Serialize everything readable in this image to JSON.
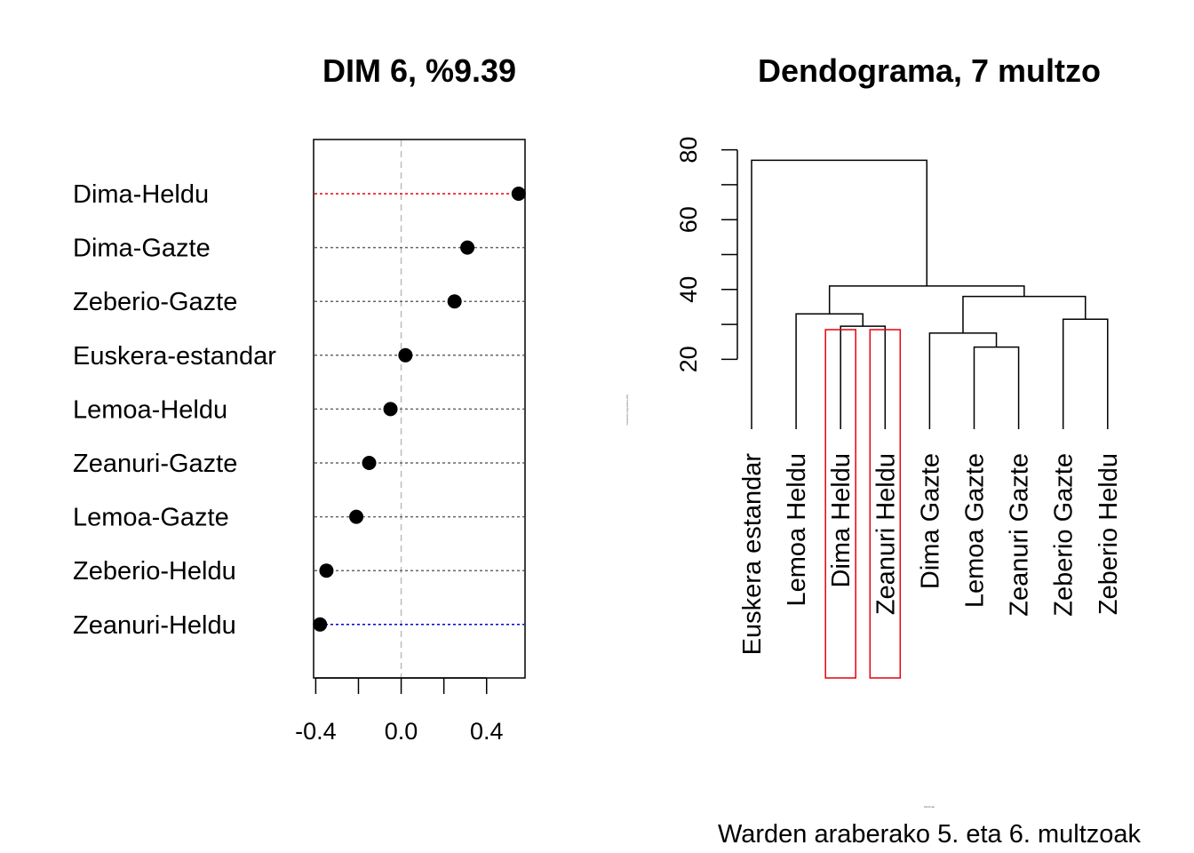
{
  "chart_data": [
    {
      "type": "scatter",
      "title": "DIM 6, %9.39",
      "categories": [
        "Dima-Heldu",
        "Dima-Gazte",
        "Zeberio-Gazte",
        "Euskera-estandar",
        "Lemoa-Heldu",
        "Zeanuri-Gazte",
        "Lemoa-Gazte",
        "Zeberio-Heldu",
        "Zeanuri-Heldu"
      ],
      "values": [
        0.55,
        0.31,
        0.25,
        0.02,
        -0.05,
        -0.15,
        -0.21,
        -0.35,
        -0.38
      ],
      "xlim": [
        -0.41,
        0.58
      ],
      "xticks": [
        -0.4,
        -0.2,
        0.0,
        0.2,
        0.4
      ],
      "xtick_labels": [
        "-0.4",
        "0.0",
        "0.4"
      ],
      "reference_line": 0.0,
      "line_colors": {
        "max": "#e8000b",
        "min": "#0000dd",
        "default": "#666666"
      },
      "point_color": "#000000"
    },
    {
      "type": "dendrogram",
      "title": "Dendograma, 7 multzo",
      "leaves": [
        "Euskera estandar",
        "Lemoa Heldu",
        "Dima Heldu",
        "Zeanuri Heldu",
        "Dima Gazte",
        "Lemoa Gazte",
        "Zeanuri Gazte",
        "Zeberio Gazte",
        "Zeberio Heldu"
      ],
      "yticks": [
        20,
        40,
        60,
        80
      ],
      "yticks_minor": [
        20,
        30,
        40,
        50,
        60,
        70,
        80
      ],
      "ylim_plot": [
        0,
        80
      ],
      "merges": [
        {
          "a": "L2",
          "b": "L3",
          "height": 29.5,
          "id": "M1"
        },
        {
          "a": "L5",
          "b": "L6",
          "height": 23.5,
          "id": "M2"
        },
        {
          "a": "L4",
          "b": "M2",
          "height": 27.5,
          "id": "M3"
        },
        {
          "a": "L7",
          "b": "L8",
          "height": 31.5,
          "id": "M4"
        },
        {
          "a": "L1",
          "b": "M1",
          "height": 33.0,
          "id": "M5"
        },
        {
          "a": "M3",
          "b": "M4",
          "height": 38.0,
          "id": "M6"
        },
        {
          "a": "M5",
          "b": "M6",
          "height": 41.0,
          "id": "M7"
        },
        {
          "a": "L0",
          "b": "M7",
          "height": 77.0,
          "id": "M8"
        }
      ],
      "highlight_leaves": [
        "Dima Heldu",
        "Zeanuri Heldu"
      ],
      "highlight_color": "#e8000b",
      "ylabel_small": "Distantzia linguistikoa (ID)",
      "xlabel_small": "Multzoak",
      "caption": "Warden araberako 5. eta 6. multzoak"
    }
  ]
}
